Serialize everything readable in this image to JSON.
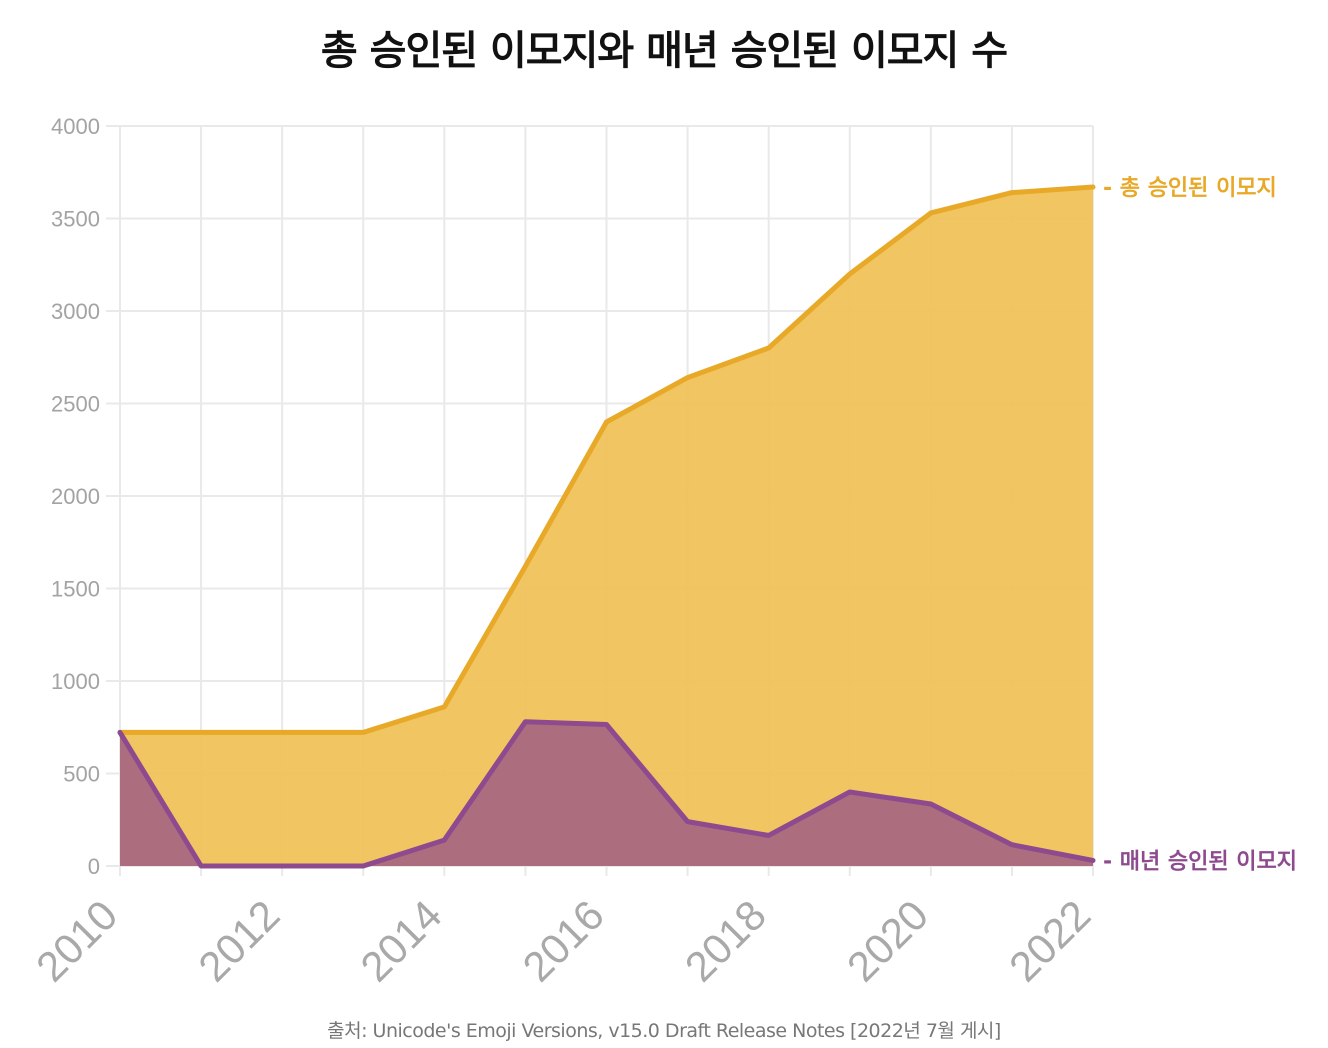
{
  "chart_data": {
    "type": "area",
    "title": "총 승인된 이모지와 매년 승인된 이모지 수",
    "source": "출처: Unicode's Emoji Versions, v15.0 Draft Release Notes [2022년 7월 게시]",
    "x": [
      2010,
      2011,
      2012,
      2013,
      2014,
      2015,
      2016,
      2017,
      2018,
      2019,
      2020,
      2021,
      2022
    ],
    "x_ticks": [
      "2010",
      "2012",
      "2014",
      "2016",
      "2018",
      "2020",
      "2022"
    ],
    "y_ticks": [
      "0",
      "500",
      "1000",
      "1500",
      "2000",
      "2500",
      "3000",
      "3500",
      "4000"
    ],
    "ylim": [
      0,
      4000
    ],
    "xlim": [
      2010,
      2022
    ],
    "grid": true,
    "series": [
      {
        "name": "총 승인된 이모지",
        "label": "- 총 승인된 이모지",
        "color": "#e8a928",
        "fill": "#f0c25a",
        "values": [
          722,
          722,
          722,
          722,
          860,
          1620,
          2400,
          2640,
          2800,
          3200,
          3530,
          3640,
          3670
        ]
      },
      {
        "name": "매년 승인된 이모지",
        "label": "- 매년 승인된 이모지",
        "color": "#8e4a8e",
        "fill": "#a8697f",
        "values": [
          722,
          0,
          0,
          0,
          140,
          780,
          765,
          240,
          165,
          400,
          335,
          115,
          30
        ]
      }
    ]
  }
}
